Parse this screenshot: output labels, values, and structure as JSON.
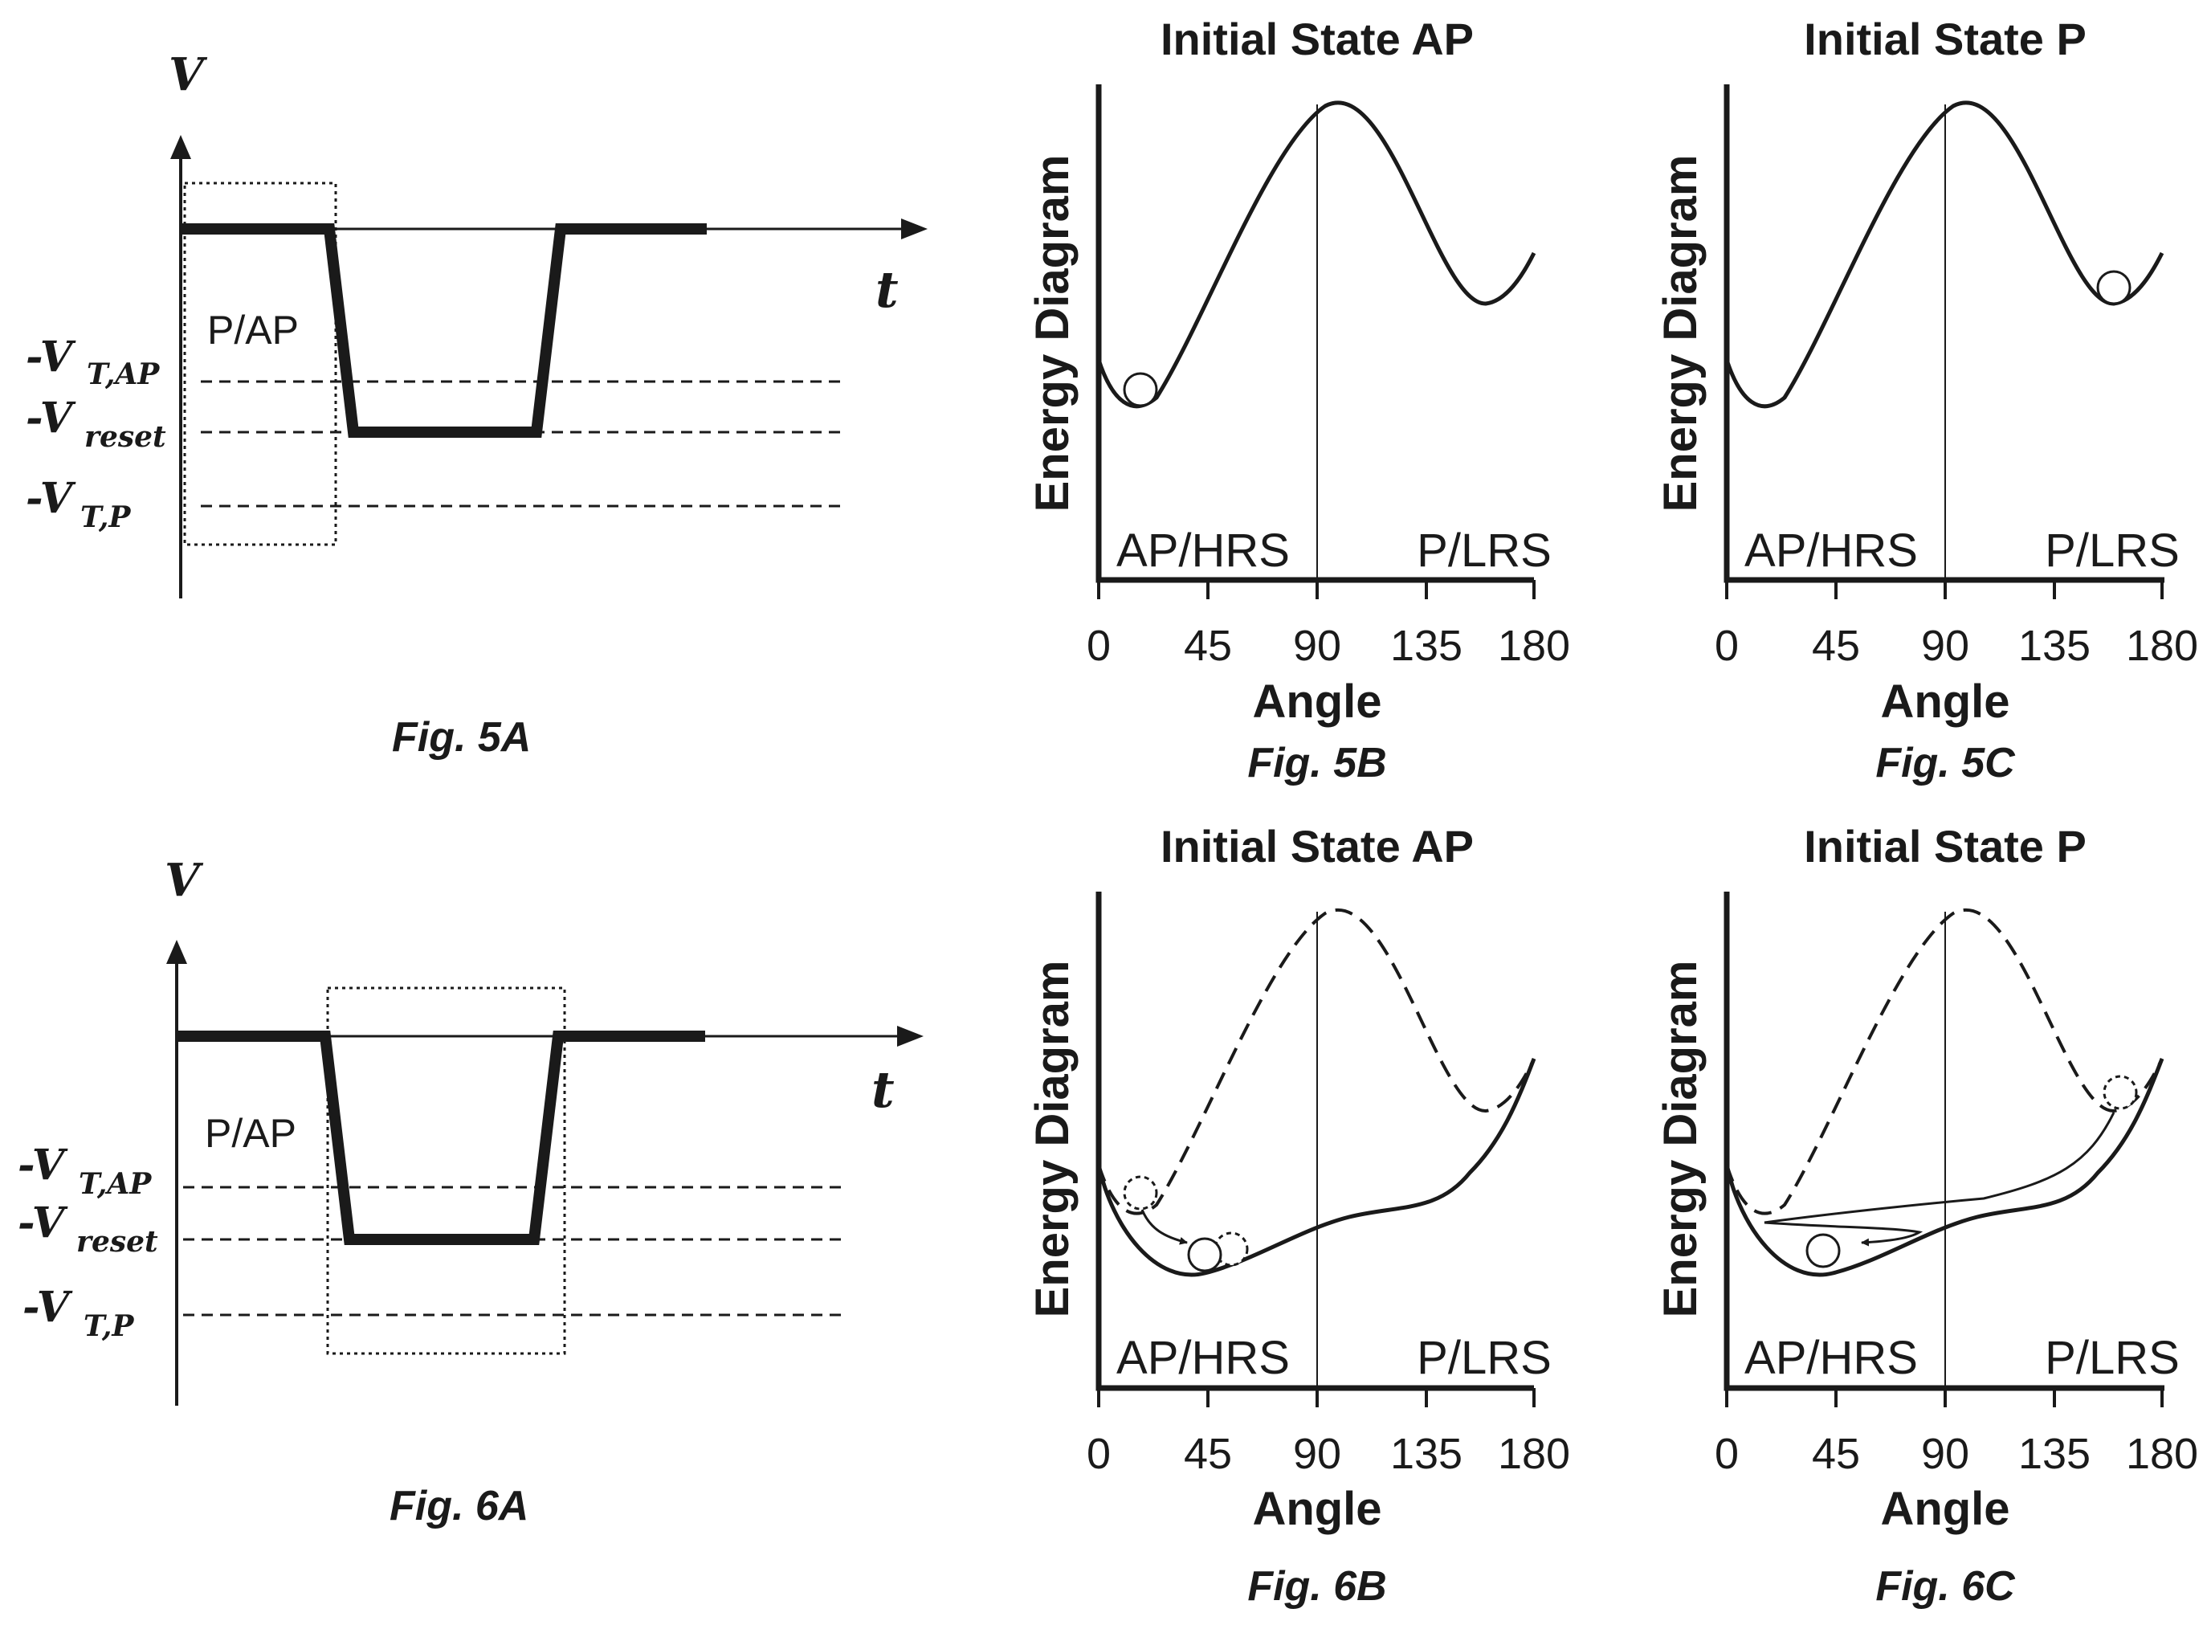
{
  "figures": {
    "fig5a": {
      "caption": "Fig. 5A",
      "y_axis": "V",
      "x_axis": "t",
      "region_label": "P/AP",
      "levels": [
        {
          "main": "-V",
          "sub": "T,AP"
        },
        {
          "main": "-V",
          "sub": "reset"
        },
        {
          "main": "-V",
          "sub": "T,P"
        }
      ]
    },
    "fig6a": {
      "caption": "Fig. 6A",
      "y_axis": "V",
      "x_axis": "t",
      "region_label": "P/AP",
      "levels": [
        {
          "main": "-V",
          "sub": "T,AP"
        },
        {
          "main": "-V",
          "sub": "reset"
        },
        {
          "main": "-V",
          "sub": "T,P"
        }
      ]
    },
    "fig5b": {
      "caption": "Fig. 5B",
      "title": "Initial State AP",
      "ylabel": "Energy Diagram",
      "xlabel": "Angle",
      "xticks": [
        "0",
        "45",
        "90",
        "135",
        "180"
      ],
      "left_state": "AP/HRS",
      "right_state": "P/LRS"
    },
    "fig5c": {
      "caption": "Fig. 5C",
      "title": "Initial State P",
      "ylabel": "Energy Diagram",
      "xlabel": "Angle",
      "xticks": [
        "0",
        "45",
        "90",
        "135",
        "180"
      ],
      "left_state": "AP/HRS",
      "right_state": "P/LRS"
    },
    "fig6b": {
      "caption": "Fig. 6B",
      "title": "Initial State AP",
      "ylabel": "Energy Diagram",
      "xlabel": "Angle",
      "xticks": [
        "0",
        "45",
        "90",
        "135",
        "180"
      ],
      "left_state": "AP/HRS",
      "right_state": "P/LRS"
    },
    "fig6c": {
      "caption": "Fig. 6C",
      "title": "Initial State P",
      "ylabel": "Energy Diagram",
      "xlabel": "Angle",
      "xticks": [
        "0",
        "45",
        "90",
        "135",
        "180"
      ],
      "left_state": "AP/HRS",
      "right_state": "P/LRS"
    }
  }
}
